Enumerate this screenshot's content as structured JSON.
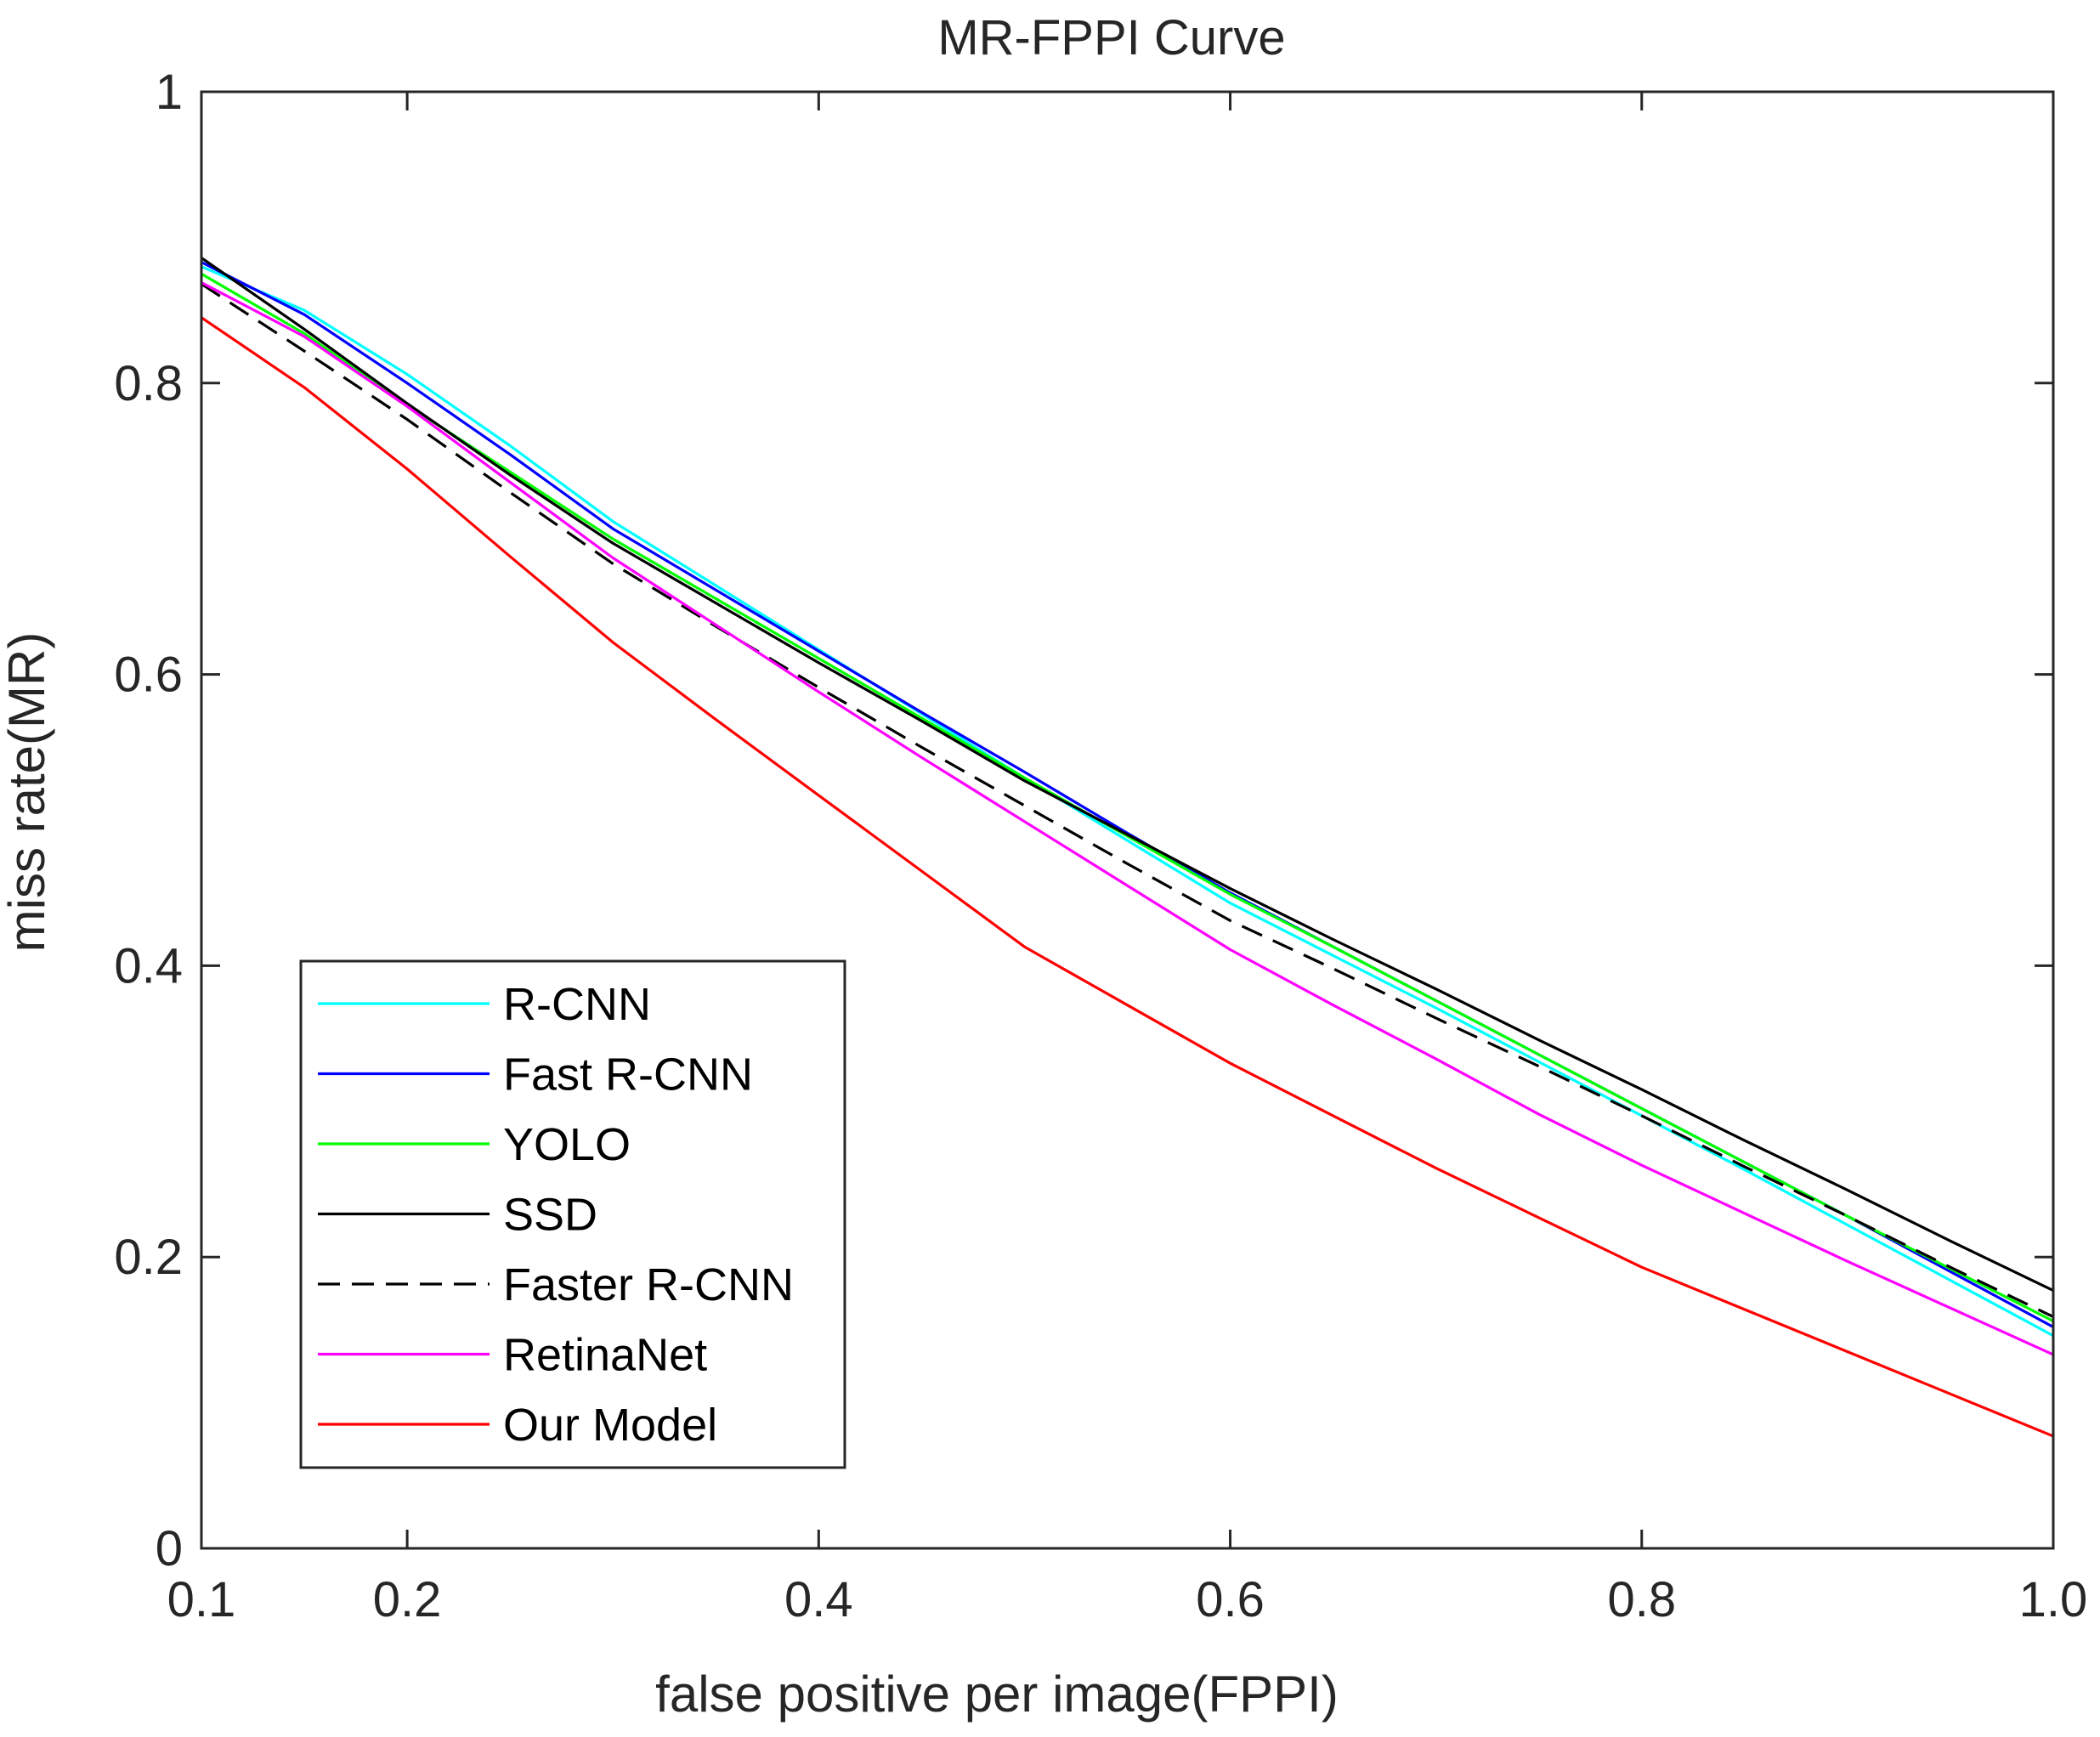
{
  "chart_data": {
    "type": "line",
    "title": "MR-FPPI Curve",
    "xlabel": "false positive per image(FPPI)",
    "ylabel": "miss rate(MR)",
    "xlim": [
      0.1,
      1.0
    ],
    "ylim": [
      0,
      1
    ],
    "xticks": [
      0.1,
      0.2,
      0.4,
      0.6,
      0.8,
      1.0
    ],
    "xtick_labels": [
      "0.1",
      "0.2",
      "0.4",
      "0.6",
      "0.8",
      "1.0"
    ],
    "yticks": [
      0,
      0.2,
      0.4,
      0.6,
      0.8,
      1
    ],
    "ytick_labels": [
      "0",
      "0.2",
      "0.4",
      "0.6",
      "0.8",
      "1"
    ],
    "grid": false,
    "legend_position": "bottom-left",
    "x": [
      0.1,
      0.15,
      0.2,
      0.25,
      0.3,
      0.35,
      0.4,
      0.45,
      0.5,
      0.55,
      0.6,
      0.65,
      0.7,
      0.75,
      0.8,
      0.85,
      0.9,
      0.95,
      1.0
    ],
    "series": [
      {
        "name": "R-CNN",
        "color": "#00ffff",
        "dash": false,
        "values": [
          0.88,
          0.85,
          0.806,
          0.757,
          0.705,
          0.661,
          0.617,
          0.573,
          0.529,
          0.486,
          0.443,
          0.407,
          0.371,
          0.334,
          0.297,
          0.26,
          0.222,
          0.184,
          0.146
        ]
      },
      {
        "name": "Fast R-CNN",
        "color": "#0000ff",
        "dash": false,
        "values": [
          0.883,
          0.847,
          0.8,
          0.751,
          0.7,
          0.658,
          0.616,
          0.574,
          0.533,
          0.491,
          0.45,
          0.413,
          0.376,
          0.339,
          0.302,
          0.265,
          0.228,
          0.19,
          0.152
        ]
      },
      {
        "name": "YOLO",
        "color": "#00ff00",
        "dash": false,
        "values": [
          0.875,
          0.834,
          0.785,
          0.739,
          0.693,
          0.652,
          0.611,
          0.57,
          0.529,
          0.489,
          0.449,
          0.413,
          0.376,
          0.339,
          0.302,
          0.265,
          0.228,
          0.192,
          0.156
        ]
      },
      {
        "name": "SSD",
        "color": "#000000",
        "dash": false,
        "values": [
          0.886,
          0.837,
          0.786,
          0.737,
          0.69,
          0.649,
          0.608,
          0.568,
          0.527,
          0.49,
          0.453,
          0.418,
          0.384,
          0.349,
          0.315,
          0.28,
          0.246,
          0.211,
          0.177
        ]
      },
      {
        "name": "Faster R-CNN",
        "color": "#000000",
        "dash": true,
        "values": [
          0.868,
          0.822,
          0.775,
          0.725,
          0.676,
          0.633,
          0.591,
          0.55,
          0.51,
          0.47,
          0.431,
          0.398,
          0.364,
          0.331,
          0.297,
          0.262,
          0.228,
          0.193,
          0.159
        ]
      },
      {
        "name": "RetinaNet",
        "color": "#ff00ff",
        "dash": false,
        "values": [
          0.869,
          0.832,
          0.784,
          0.732,
          0.68,
          0.634,
          0.588,
          0.543,
          0.499,
          0.455,
          0.411,
          0.373,
          0.336,
          0.298,
          0.263,
          0.23,
          0.197,
          0.165,
          0.133
        ]
      },
      {
        "name": "Our Model",
        "color": "#ff0000",
        "dash": false,
        "values": [
          0.845,
          0.797,
          0.741,
          0.681,
          0.622,
          0.569,
          0.517,
          0.465,
          0.413,
          0.373,
          0.333,
          0.297,
          0.261,
          0.227,
          0.193,
          0.164,
          0.135,
          0.106,
          0.077
        ]
      }
    ]
  }
}
